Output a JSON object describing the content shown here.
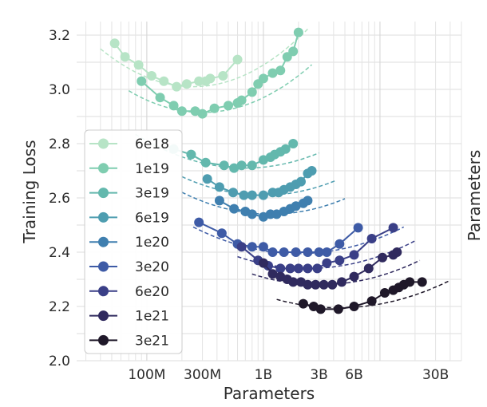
{
  "chart_data": {
    "type": "line",
    "xlabel": "Parameters",
    "ylabel": "Training Loss",
    "right_ylabel": "Parameters",
    "x_scale": "log",
    "xlim": [
      25000000,
      50000000000
    ],
    "ylim": [
      2.0,
      3.25
    ],
    "x_ticks": [
      {
        "value": 100000000,
        "label": "100M"
      },
      {
        "value": 300000000,
        "label": "300M"
      },
      {
        "value": 1000000000,
        "label": "1B"
      },
      {
        "value": 3000000000,
        "label": "3B"
      },
      {
        "value": 6000000000,
        "label": "6B"
      },
      {
        "value": 30000000000,
        "label": "30B"
      }
    ],
    "y_ticks": [
      {
        "value": 2.0,
        "label": "2.0"
      },
      {
        "value": 2.2,
        "label": "2.2"
      },
      {
        "value": 2.4,
        "label": "2.4"
      },
      {
        "value": 2.6,
        "label": "2.6"
      },
      {
        "value": 2.8,
        "label": "2.8"
      },
      {
        "value": 3.0,
        "label": "3.0"
      },
      {
        "value": 3.2,
        "label": "3.2"
      }
    ],
    "grid": true,
    "legend_position": "left",
    "series": [
      {
        "name": "6e18",
        "color": "#b7e4c6",
        "fit": {
          "min_x": 250000000,
          "min_y": 3.01,
          "k": 0.22,
          "x_from": 40000000,
          "x_to": 2400000000
        },
        "points": [
          [
            53000000,
            3.17
          ],
          [
            65000000,
            3.12
          ],
          [
            85000000,
            3.09
          ],
          [
            110000000,
            3.05
          ],
          [
            140000000,
            3.03
          ],
          [
            180000000,
            3.01
          ],
          [
            220000000,
            3.02
          ],
          [
            280000000,
            3.03
          ],
          [
            320000000,
            3.03
          ],
          [
            350000000,
            3.04
          ],
          [
            450000000,
            3.05
          ],
          [
            600000000,
            3.11
          ]
        ]
      },
      {
        "name": "1e19",
        "color": "#7fcdb0",
        "fit": {
          "min_x": 300000000,
          "min_y": 2.915,
          "k": 0.2,
          "x_from": 70000000,
          "x_to": 2600000000
        },
        "points": [
          [
            90000000,
            3.03
          ],
          [
            130000000,
            2.97
          ],
          [
            170000000,
            2.94
          ],
          [
            200000000,
            2.92
          ],
          [
            260000000,
            2.92
          ],
          [
            300000000,
            2.91
          ],
          [
            380000000,
            2.93
          ],
          [
            500000000,
            2.94
          ],
          [
            600000000,
            2.95
          ],
          [
            650000000,
            2.96
          ],
          [
            800000000,
            2.99
          ],
          [
            900000000,
            3.02
          ],
          [
            1000000000,
            3.04
          ],
          [
            1200000000,
            3.06
          ],
          [
            1400000000,
            3.07
          ],
          [
            1600000000,
            3.12
          ],
          [
            1800000000,
            3.14
          ],
          [
            2000000000,
            3.21
          ]
        ]
      },
      {
        "name": "3e19",
        "color": "#63b8ad",
        "fit": {
          "min_x": 700000000,
          "min_y": 2.71,
          "k": 0.14,
          "x_from": 80000000,
          "x_to": 3000000000
        },
        "points": [
          [
            170000000,
            2.78
          ],
          [
            240000000,
            2.76
          ],
          [
            320000000,
            2.73
          ],
          [
            460000000,
            2.72
          ],
          [
            560000000,
            2.71
          ],
          [
            650000000,
            2.72
          ],
          [
            800000000,
            2.72
          ],
          [
            1000000000,
            2.74
          ],
          [
            1150000000,
            2.75
          ],
          [
            1250000000,
            2.76
          ],
          [
            1400000000,
            2.77
          ],
          [
            1550000000,
            2.78
          ],
          [
            1800000000,
            2.8
          ]
        ]
      },
      {
        "name": "6e19",
        "color": "#4e9db0",
        "fit": {
          "min_x": 1000000000,
          "min_y": 2.61,
          "k": 0.14,
          "x_from": 200000000,
          "x_to": 4200000000
        },
        "points": [
          [
            330000000,
            2.67
          ],
          [
            420000000,
            2.64
          ],
          [
            550000000,
            2.62
          ],
          [
            680000000,
            2.61
          ],
          [
            800000000,
            2.61
          ],
          [
            1000000000,
            2.61
          ],
          [
            1200000000,
            2.62
          ],
          [
            1350000000,
            2.62
          ],
          [
            1500000000,
            2.63
          ],
          [
            1700000000,
            2.64
          ],
          [
            1900000000,
            2.65
          ],
          [
            2100000000,
            2.66
          ],
          [
            2400000000,
            2.69
          ],
          [
            2600000000,
            2.7
          ]
        ]
      },
      {
        "name": "1e20",
        "color": "#3f7faf",
        "fit": {
          "min_x": 1150000000,
          "min_y": 2.54,
          "k": 0.14,
          "x_from": 200000000,
          "x_to": 5000000000
        },
        "points": [
          [
            420000000,
            2.59
          ],
          [
            560000000,
            2.56
          ],
          [
            700000000,
            2.55
          ],
          [
            800000000,
            2.54
          ],
          [
            1000000000,
            2.53
          ],
          [
            1150000000,
            2.54
          ],
          [
            1300000000,
            2.54
          ],
          [
            1500000000,
            2.55
          ],
          [
            1700000000,
            2.56
          ],
          [
            1900000000,
            2.57
          ],
          [
            2200000000,
            2.58
          ],
          [
            2400000000,
            2.59
          ]
        ]
      },
      {
        "name": "3e20",
        "color": "#3e5ba6",
        "fit": {
          "min_x": 2000000000,
          "min_y": 2.395,
          "k": 0.12,
          "x_from": 250000000,
          "x_to": 16000000000
        },
        "points": [
          [
            280000000,
            2.51
          ],
          [
            440000000,
            2.47
          ],
          [
            600000000,
            2.43
          ],
          [
            800000000,
            2.42
          ],
          [
            1000000000,
            2.42
          ],
          [
            1200000000,
            2.4
          ],
          [
            1500000000,
            2.4
          ],
          [
            1900000000,
            2.4
          ],
          [
            2400000000,
            2.4
          ],
          [
            3000000000,
            2.4
          ],
          [
            3500000000,
            2.4
          ],
          [
            4500000000,
            2.43
          ],
          [
            6500000000,
            2.49
          ]
        ]
      },
      {
        "name": "6e20",
        "color": "#3a3f87",
        "fit": {
          "min_x": 2400000000,
          "min_y": 2.34,
          "k": 0.12,
          "x_from": 600000000,
          "x_to": 20000000000
        },
        "points": [
          [
            650000000,
            2.42
          ],
          [
            900000000,
            2.37
          ],
          [
            1100000000,
            2.35
          ],
          [
            1400000000,
            2.34
          ],
          [
            1700000000,
            2.34
          ],
          [
            2000000000,
            2.34
          ],
          [
            2400000000,
            2.34
          ],
          [
            2900000000,
            2.34
          ],
          [
            3500000000,
            2.36
          ],
          [
            4500000000,
            2.37
          ],
          [
            6000000000,
            2.39
          ],
          [
            8500000000,
            2.45
          ],
          [
            13000000000,
            2.49
          ]
        ]
      },
      {
        "name": "1e21",
        "color": "#302a5e",
        "fit": {
          "min_x": 3000000000,
          "min_y": 2.28,
          "k": 0.12,
          "x_from": 800000000,
          "x_to": 22000000000
        },
        "points": [
          [
            1000000000,
            2.36
          ],
          [
            1200000000,
            2.32
          ],
          [
            1400000000,
            2.31
          ],
          [
            1600000000,
            2.3
          ],
          [
            1800000000,
            2.29
          ],
          [
            2100000000,
            2.29
          ],
          [
            2400000000,
            2.28
          ],
          [
            2800000000,
            2.28
          ],
          [
            3300000000,
            2.28
          ],
          [
            3900000000,
            2.28
          ],
          [
            4700000000,
            2.29
          ],
          [
            6000000000,
            2.31
          ],
          [
            8000000000,
            2.34
          ],
          [
            10500000000,
            2.38
          ],
          [
            13000000000,
            2.39
          ],
          [
            14000000000,
            2.4
          ]
        ]
      },
      {
        "name": "3e21",
        "color": "#1f1829",
        "fit": {
          "min_x": 4400000000,
          "min_y": 2.195,
          "k": 0.11,
          "x_from": 1300000000,
          "x_to": 40000000000
        },
        "points": [
          [
            2200000000,
            2.21
          ],
          [
            2700000000,
            2.2
          ],
          [
            3100000000,
            2.19
          ],
          [
            4400000000,
            2.19
          ],
          [
            6000000000,
            2.2
          ],
          [
            8500000000,
            2.22
          ],
          [
            11000000000,
            2.25
          ],
          [
            13000000000,
            2.26
          ],
          [
            14500000000,
            2.27
          ],
          [
            16000000000,
            2.28
          ],
          [
            18000000000,
            2.29
          ],
          [
            23000000000,
            2.29
          ]
        ]
      }
    ]
  }
}
